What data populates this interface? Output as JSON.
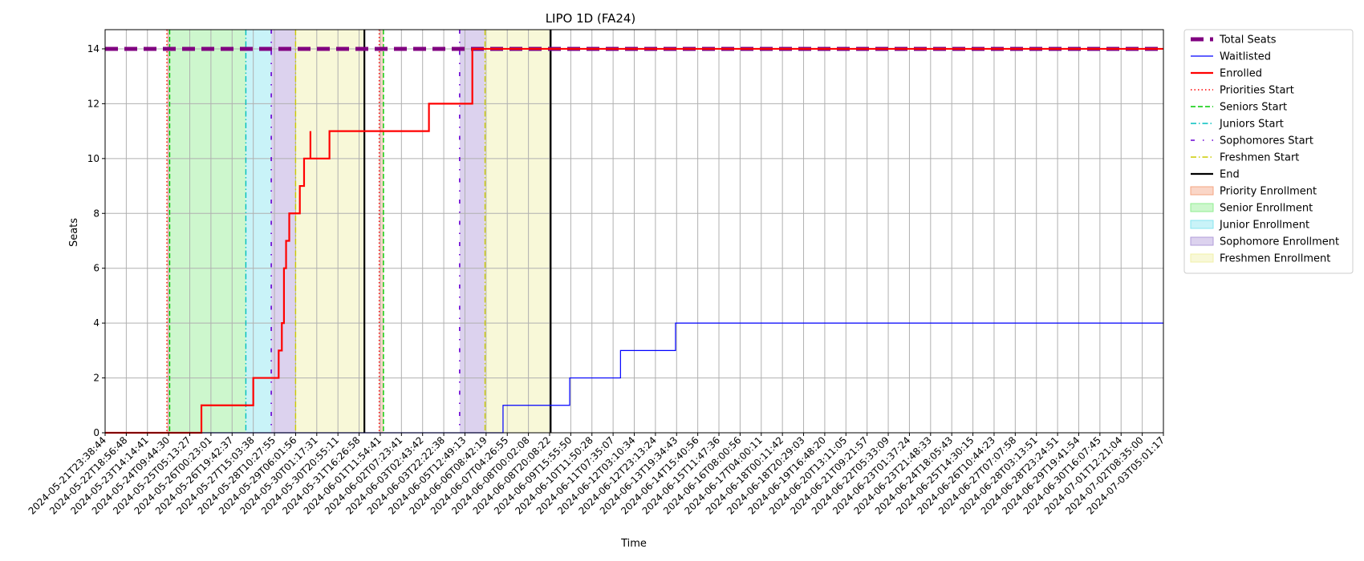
{
  "chart_data": {
    "type": "line",
    "title": "LIPO 1D (FA24)",
    "xlabel": "Time",
    "ylabel": "Seats",
    "ylim": [
      0,
      14.7
    ],
    "y_ticks": [
      0,
      2,
      4,
      6,
      8,
      10,
      12,
      14
    ],
    "grid": true,
    "legend_position": "outside-right",
    "x_tick_labels": [
      "2024-05-21T23:38:44",
      "2024-05-22T18:56:48",
      "2024-05-23T14:14:41",
      "2024-05-24T09:44:30",
      "2024-05-25T05:13:27",
      "2024-05-26T00:23:01",
      "2024-05-26T19:42:37",
      "2024-05-27T15:03:38",
      "2024-05-28T10:27:55",
      "2024-05-29T06:01:56",
      "2024-05-30T01:17:31",
      "2024-05-30T20:55:11",
      "2024-05-31T16:26:58",
      "2024-06-01T11:54:41",
      "2024-06-02T07:23:41",
      "2024-06-03T02:43:42",
      "2024-06-03T22:22:38",
      "2024-06-05T12:49:13",
      "2024-06-06T08:42:19",
      "2024-06-07T04:26:55",
      "2024-06-08T00:02:08",
      "2024-06-08T20:08:22",
      "2024-06-09T15:55:50",
      "2024-06-10T11:50:28",
      "2024-06-11T07:35:07",
      "2024-06-12T03:10:34",
      "2024-06-12T23:13:24",
      "2024-06-13T19:34:43",
      "2024-06-14T15:40:56",
      "2024-06-15T11:47:36",
      "2024-06-16T08:00:56",
      "2024-06-17T04:00:11",
      "2024-06-18T00:11:42",
      "2024-06-18T20:29:03",
      "2024-06-19T16:48:20",
      "2024-06-20T13:11:05",
      "2024-06-21T09:21:57",
      "2024-06-22T05:33:09",
      "2024-06-23T01:37:24",
      "2024-06-23T21:48:33",
      "2024-06-24T18:05:43",
      "2024-06-25T14:30:15",
      "2024-06-26T10:44:23",
      "2024-06-27T07:07:58",
      "2024-06-28T03:13:51",
      "2024-06-28T23:24:51",
      "2024-06-29T19:41:54",
      "2024-06-30T16:07:45",
      "2024-07-01T12:21:04",
      "2024-07-02T08:35:00",
      "2024-07-03T05:01:17"
    ],
    "x_range_tick_index": [
      0,
      50
    ],
    "series": [
      {
        "name": "Total Seats",
        "color": "#800080",
        "style": "dashed-thick",
        "points": [
          [
            0,
            14
          ],
          [
            50,
            14
          ]
        ]
      },
      {
        "name": "Waitlisted",
        "color": "#0000ff",
        "style": "solid-thin",
        "step": true,
        "points": [
          [
            0,
            0
          ],
          [
            18.8,
            0
          ],
          [
            18.8,
            1
          ],
          [
            21.95,
            1
          ],
          [
            21.95,
            2
          ],
          [
            24.35,
            2
          ],
          [
            24.35,
            3
          ],
          [
            26.95,
            3
          ],
          [
            26.95,
            4
          ],
          [
            50,
            4
          ]
        ]
      },
      {
        "name": "Enrolled",
        "color": "#ff0000",
        "style": "solid",
        "step": true,
        "points": [
          [
            0,
            0
          ],
          [
            4.55,
            0
          ],
          [
            4.55,
            1
          ],
          [
            7.0,
            1
          ],
          [
            7.0,
            2
          ],
          [
            8.2,
            2
          ],
          [
            8.2,
            3
          ],
          [
            8.35,
            3
          ],
          [
            8.35,
            4
          ],
          [
            8.45,
            4
          ],
          [
            8.45,
            6
          ],
          [
            8.55,
            6
          ],
          [
            8.55,
            7
          ],
          [
            8.7,
            7
          ],
          [
            8.7,
            8
          ],
          [
            9.2,
            8
          ],
          [
            9.2,
            9
          ],
          [
            9.4,
            9
          ],
          [
            9.4,
            10
          ],
          [
            9.7,
            10
          ],
          [
            9.7,
            11
          ],
          [
            9.7,
            10
          ],
          [
            10.6,
            10
          ],
          [
            10.6,
            11
          ],
          [
            15.3,
            11
          ],
          [
            15.3,
            12
          ],
          [
            17.35,
            12
          ],
          [
            17.35,
            13
          ],
          [
            17.35,
            14
          ],
          [
            50,
            14
          ]
        ],
        "end_segment": {
          "name": "Enrolled (after end)",
          "color": "#ff0000"
        }
      }
    ],
    "markers": [
      {
        "name": "Priorities Start",
        "x": 2.92,
        "color": "#ff0000",
        "style": "dotted"
      },
      {
        "name": "Seniors Start",
        "x": 3.05,
        "color": "#00cc00",
        "style": "dashed"
      },
      {
        "name": "Juniors Start",
        "x": 6.65,
        "color": "#00bfbf",
        "style": "dashdot"
      },
      {
        "name": "Sophomores Start",
        "x": 7.85,
        "color": "#6a00d4",
        "style": "dashdot-sparse"
      },
      {
        "name": "Freshmen Start",
        "x": 9.0,
        "color": "#cccc00",
        "style": "dashdot"
      },
      {
        "name": "End",
        "x": 12.25,
        "color": "#000000",
        "style": "solid"
      },
      {
        "name": "Priorities Start",
        "x": 12.95,
        "color": "#ff0000",
        "style": "dotted"
      },
      {
        "name": "Seniors Start",
        "x": 13.15,
        "color": "#00cc00",
        "style": "dashed"
      },
      {
        "name": "Sophomores Start",
        "x": 16.75,
        "color": "#6a00d4",
        "style": "dashdot-sparse"
      },
      {
        "name": "Freshmen Start",
        "x": 17.95,
        "color": "#cccc00",
        "style": "dashdot"
      },
      {
        "name": "End",
        "x": 21.05,
        "color": "#000000",
        "style": "solid"
      }
    ],
    "spans": [
      {
        "name": "Priority Enrollment",
        "x0": 2.92,
        "x1": 3.05,
        "color": "#f4a582"
      },
      {
        "name": "Senior Enrollment",
        "x0": 3.05,
        "x1": 6.65,
        "color": "#90ee90"
      },
      {
        "name": "Junior Enrollment",
        "x0": 6.65,
        "x1": 7.85,
        "color": "#87e5ef"
      },
      {
        "name": "Sophomore Enrollment",
        "x0": 7.85,
        "x1": 9.0,
        "color": "#b19cd9"
      },
      {
        "name": "Freshmen Enrollment",
        "x0": 9.0,
        "x1": 12.25,
        "color": "#f0f0a8"
      },
      {
        "name": "Priority Enrollment",
        "x0": 12.95,
        "x1": 13.15,
        "color": "#f4a582"
      },
      {
        "name": "Sophomore Enrollment",
        "x0": 16.75,
        "x1": 17.95,
        "color": "#b19cd9"
      },
      {
        "name": "Freshmen Enrollment",
        "x0": 17.95,
        "x1": 21.05,
        "color": "#f0f0a8"
      }
    ],
    "legend": [
      {
        "label": "Total Seats",
        "kind": "line",
        "color": "#800080",
        "style": "dashed-thick"
      },
      {
        "label": "Waitlisted",
        "kind": "line",
        "color": "#0000ff",
        "style": "solid-thin"
      },
      {
        "label": "Enrolled",
        "kind": "line",
        "color": "#ff0000",
        "style": "solid"
      },
      {
        "label": "Priorities Start",
        "kind": "line",
        "color": "#ff0000",
        "style": "dotted"
      },
      {
        "label": "Seniors Start",
        "kind": "line",
        "color": "#00cc00",
        "style": "dashed"
      },
      {
        "label": "Juniors Start",
        "kind": "line",
        "color": "#00bfbf",
        "style": "dashdot"
      },
      {
        "label": "Sophomores Start",
        "kind": "line",
        "color": "#6a00d4",
        "style": "dashdot-sparse"
      },
      {
        "label": "Freshmen Start",
        "kind": "line",
        "color": "#cccc00",
        "style": "dashdot"
      },
      {
        "label": "End",
        "kind": "line",
        "color": "#000000",
        "style": "solid"
      },
      {
        "label": "Priority Enrollment",
        "kind": "patch",
        "color": "#f4a582"
      },
      {
        "label": "Senior Enrollment",
        "kind": "patch",
        "color": "#90ee90"
      },
      {
        "label": "Junior Enrollment",
        "kind": "patch",
        "color": "#87e5ef"
      },
      {
        "label": "Sophomore Enrollment",
        "kind": "patch",
        "color": "#b19cd9"
      },
      {
        "label": "Freshmen Enrollment",
        "kind": "patch",
        "color": "#f0f0a8"
      }
    ]
  }
}
